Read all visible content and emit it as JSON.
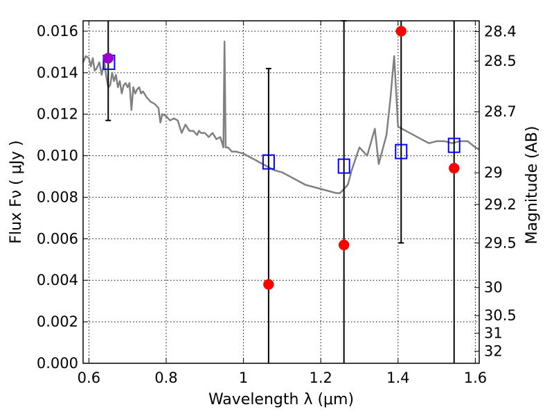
{
  "chart_data": {
    "type": "scatter",
    "xlabel": "Wavelength  λ (μm)",
    "ylabel": "Flux  Fν  ( μJy )",
    "y2label": "Magnitude (AB)",
    "xlim": [
      0.585,
      1.61
    ],
    "ylim": [
      0.0,
      0.0165
    ],
    "grid": true,
    "x_ticks": [
      0.6,
      0.8,
      1.0,
      1.2,
      1.4,
      1.6
    ],
    "x_tick_labels": [
      "0.6",
      "0.8",
      "1",
      "1.2",
      "1.4",
      "1.6"
    ],
    "y_ticks": [
      0.0,
      0.002,
      0.004,
      0.006,
      0.008,
      0.01,
      0.012,
      0.014,
      0.016
    ],
    "y_tick_labels": [
      "0.000",
      "0.002",
      "0.004",
      "0.006",
      "0.008",
      "0.010",
      "0.012",
      "0.014",
      "0.016"
    ],
    "y2_ticks": [
      {
        "label": "28.4",
        "flux": 0.01598
      },
      {
        "label": "28.5",
        "flux": 0.01456
      },
      {
        "label": "28.7",
        "flux": 0.01212
      },
      {
        "label": "29",
        "flux": 0.00918
      },
      {
        "label": "29.2",
        "flux": 0.00765
      },
      {
        "label": "29.5",
        "flux": 0.0058
      },
      {
        "label": "30",
        "flux": 0.00365
      },
      {
        "label": "30.5",
        "flux": 0.0023
      },
      {
        "label": "31",
        "flux": 0.00145
      },
      {
        "label": "32",
        "flux": 0.00058
      }
    ],
    "colors": {
      "model": "#808080",
      "observed": "#ff0000",
      "synthetic": "#0000ff",
      "highlight": "#9900cc",
      "errorbar": "#000000"
    },
    "series": [
      {
        "kind": "line",
        "x": [
          0.585,
          0.592,
          0.6,
          0.605,
          0.61,
          0.615,
          0.62,
          0.627,
          0.633,
          0.64,
          0.645,
          0.65,
          0.655,
          0.66,
          0.665,
          0.67,
          0.675,
          0.68,
          0.685,
          0.69,
          0.695,
          0.7,
          0.705,
          0.71,
          0.715,
          0.72,
          0.725,
          0.73,
          0.735,
          0.74,
          0.75,
          0.76,
          0.77,
          0.78,
          0.785,
          0.79,
          0.8,
          0.81,
          0.82,
          0.83,
          0.84,
          0.85,
          0.86,
          0.87,
          0.88,
          0.885,
          0.89,
          0.9,
          0.91,
          0.92,
          0.93,
          0.94,
          0.945,
          0.948,
          0.951,
          0.954,
          0.96,
          0.97,
          0.98,
          1.0,
          1.02,
          1.04,
          1.06,
          1.08,
          1.1,
          1.12,
          1.14,
          1.16,
          1.18,
          1.2,
          1.22,
          1.24,
          1.25,
          1.27,
          1.28,
          1.3,
          1.32,
          1.34,
          1.35,
          1.37,
          1.38,
          1.39,
          1.4,
          1.41,
          1.42,
          1.44,
          1.46,
          1.48,
          1.5,
          1.52,
          1.54,
          1.56,
          1.58,
          1.6,
          1.61
        ],
        "y": [
          0.0145,
          0.0148,
          0.0147,
          0.0143,
          0.0147,
          0.0141,
          0.0142,
          0.0145,
          0.0139,
          0.0145,
          0.0138,
          0.0133,
          0.0134,
          0.014,
          0.0136,
          0.0139,
          0.0133,
          0.0136,
          0.013,
          0.0134,
          0.0135,
          0.0133,
          0.0135,
          0.0122,
          0.0133,
          0.013,
          0.0132,
          0.0133,
          0.013,
          0.0131,
          0.0128,
          0.0126,
          0.0125,
          0.0123,
          0.0116,
          0.012,
          0.0119,
          0.0117,
          0.0118,
          0.0117,
          0.0111,
          0.0115,
          0.0112,
          0.0112,
          0.011,
          0.0112,
          0.0111,
          0.0111,
          0.0109,
          0.0111,
          0.0108,
          0.0109,
          0.0106,
          0.0104,
          0.0155,
          0.0104,
          0.0104,
          0.0102,
          0.0102,
          0.0101,
          0.0099,
          0.0097,
          0.0095,
          0.0093,
          0.0092,
          0.009,
          0.0088,
          0.0086,
          0.0085,
          0.0084,
          0.0083,
          0.0082,
          0.0082,
          0.0086,
          0.0093,
          0.0104,
          0.01,
          0.0113,
          0.0096,
          0.011,
          0.0127,
          0.0148,
          0.0114,
          0.0113,
          0.0112,
          0.011,
          0.0108,
          0.0106,
          0.0107,
          0.0107,
          0.0106,
          0.0107,
          0.0107,
          0.0104,
          0.0103
        ]
      },
      {
        "kind": "errorbar",
        "x": [
          0.65,
          1.065,
          1.26,
          1.408,
          1.545
        ],
        "y_low": [
          0.0117,
          0.0,
          0.0,
          0.0058,
          0.0
        ],
        "y_high": [
          0.0165,
          0.0142,
          0.01655,
          0.0165,
          0.0165
        ],
        "cap_low": [
          true,
          false,
          false,
          true,
          false
        ],
        "cap_high": [
          false,
          true,
          true,
          false,
          false
        ]
      },
      {
        "kind": "squares",
        "x": [
          0.652,
          1.065,
          1.26,
          1.408,
          1.545
        ],
        "y": [
          0.0145,
          0.0097,
          0.0095,
          0.0102,
          0.0105
        ]
      },
      {
        "kind": "dots",
        "x": [
          0.65,
          1.065,
          1.26,
          1.408,
          1.545
        ],
        "y": [
          0.0147,
          0.0038,
          0.0057,
          0.016,
          0.0094
        ]
      }
    ]
  }
}
